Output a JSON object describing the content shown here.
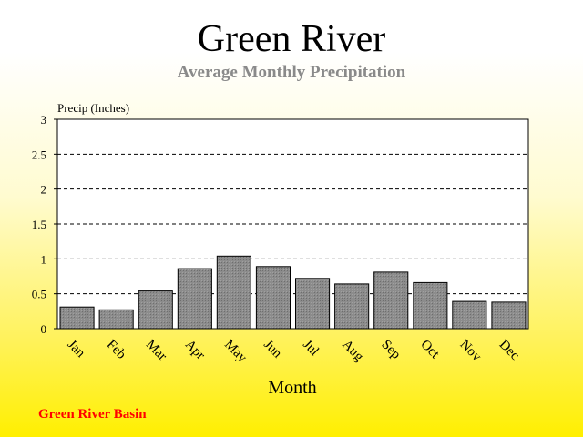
{
  "colors": {
    "footer": "#ff0000",
    "bar_fill": "#8c8c8c",
    "bar_stroke": "#000000",
    "plot_bg": "#ffffff"
  },
  "footer_text": "Green River Basin",
  "chart_data": {
    "type": "bar",
    "title": "Green River",
    "subtitle": "Average Monthly Precipitation",
    "ylabel": "Precip (Inches)",
    "xlabel": "Month",
    "categories": [
      "Jan",
      "Feb",
      "Mar",
      "Apr",
      "May",
      "Jun",
      "Jul",
      "Aug",
      "Sep",
      "Oct",
      "Nov",
      "Dec"
    ],
    "values": [
      0.31,
      0.27,
      0.54,
      0.86,
      1.04,
      0.89,
      0.72,
      0.64,
      0.81,
      0.66,
      0.39,
      0.38
    ],
    "ylim": [
      0,
      3
    ],
    "yticks": [
      "0",
      "0.5",
      "1",
      "1.5",
      "2",
      "2.5",
      "3"
    ],
    "grid": true,
    "legend": "none"
  }
}
